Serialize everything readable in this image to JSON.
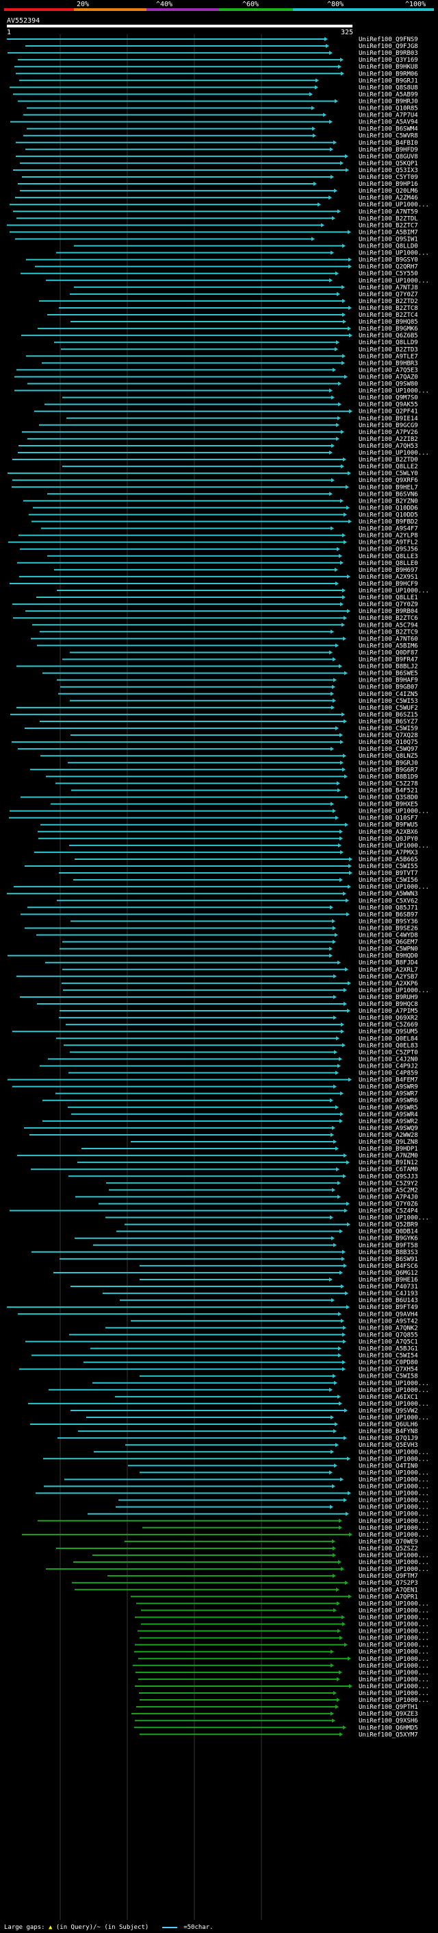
{
  "scale": {
    "labels": [
      "20%",
      "^40%",
      "^60%",
      "^80%",
      "^100%"
    ],
    "colors": [
      "#e8151b",
      "#ee7d12",
      "#9b2fb4",
      "#16b31c",
      "#22c3cc"
    ]
  },
  "query": {
    "id": "AV552394",
    "start": "1",
    "end": "325"
  },
  "hits": [
    "UniRef100_Q9FNS9",
    "UniRef100_Q9FJG8",
    "UniRef100_B9RB03",
    "UniRef100_Q3Y169",
    "UniRef100_B9HKU8",
    "UniRef100_B9RM06",
    "UniRef100_B9GRJ1",
    "UniRef100_Q8S8U8",
    "UniRef100_A5AB99",
    "UniRef100_B9HRJ0",
    "UniRef100_Q10R85",
    "UniRef100_A7P7U4",
    "UniRef100_A5AV94",
    "UniRef100_B6SWM4",
    "UniRef100_C5WVR8",
    "UniRef100_B4FBI0",
    "UniRef100_B9HFD9",
    "UniRef100_Q8GUV8",
    "UniRef100_Q5KQP1",
    "UniRef100_Q53IX3",
    "UniRef100_C5YT09",
    "UniRef100_B9HP16",
    "UniRef100_Q20LM6",
    "UniRef100_A2ZM46",
    "UniRef100_UP1000...",
    "UniRef100_A7NT59",
    "UniRef100_B2ZTDL",
    "UniRef100_B2ZTC7",
    "UniRef100_A5BIM7",
    "UniRef100_Q9SIW1",
    "UniRef100_Q8LLD0",
    "UniRef100_UP1000...",
    "UniRef100_B9GSY0",
    "UniRef100_Q2QRH7",
    "UniRef100_C5Y550",
    "UniRef100_UP1000...",
    "UniRef100_A7NTJ8",
    "UniRef100_Q7Y0Z7",
    "UniRef100_B2ZTD2",
    "UniRef100_B2ZTC8",
    "UniRef100_B2ZTC4",
    "UniRef100_B9HQ85",
    "UniRef100_B9GMK6",
    "UniRef100_Q6Z6B5",
    "UniRef100_Q8LLD9",
    "UniRef100_B2ZTD3",
    "UniRef100_A9TLE7",
    "UniRef100_B9HBR3",
    "UniRef100_A7Q5E3",
    "UniRef100_A7QAZ0",
    "UniRef100_Q9SW80",
    "UniRef100_UP1000...",
    "UniRef100_Q9M7S0",
    "UniRef100_Q9AK55",
    "UniRef100_Q2PF41",
    "UniRef100_B9IE14",
    "UniRef100_B9GCG9",
    "UniRef100_A7PV26",
    "UniRef100_A2ZIB2",
    "UniRef100_A7QH53",
    "UniRef100_UP1000...",
    "UniRef100_B2ZTD0",
    "UniRef100_Q8LLE2",
    "UniRef100_C5WLY0",
    "UniRef100_Q9XRF6",
    "UniRef100_B9HEL7",
    "UniRef100_B6SVN6",
    "UniRef100_B2YZN0",
    "UniRef100_Q10DD6",
    "UniRef100_Q10DD5",
    "UniRef100_B9FBD2",
    "UniRef100_A9S4F7",
    "UniRef100_A2YLP8",
    "UniRef100_A9TFL2",
    "UniRef100_Q9SJ56",
    "UniRef100_Q8LLE3",
    "UniRef100_Q8LLE0",
    "UniRef100_B9H697",
    "UniRef100_A2X9S1",
    "UniRef100_B9HCF9",
    "UniRef100_UP1000...",
    "UniRef100_Q8LLE1",
    "UniRef100_Q7Y0Z9",
    "UniRef100_B9RB04",
    "UniRef100_B2ZTC6",
    "UniRef100_A5C794",
    "UniRef100_B2ZTC9",
    "UniRef100_A7NT60",
    "UniRef100_A5BIM6",
    "UniRef100_Q0DF87",
    "UniRef100_B9FR47",
    "UniRef100_B8BLJ2",
    "UniRef100_B6SWE5",
    "UniRef100_B9HAF9",
    "UniRef100_B9GB07",
    "UniRef100_C4IZN5",
    "UniRef100_C5WI53",
    "UniRef100_C5WUF2",
    "UniRef100_B6SZ15",
    "UniRef100_B6SYZ7",
    "UniRef100_C5WI59",
    "UniRef100_Q7XQ28",
    "UniRef100_Q10Q75",
    "UniRef100_C5WQ97",
    "UniRef100_Q8LNZ5",
    "UniRef100_B9GRJ0",
    "UniRef100_B9G6R7",
    "UniRef100_B8B1D9",
    "UniRef100_C5Z278",
    "UniRef100_B4F521",
    "UniRef100_Q3S8D0",
    "UniRef100_B9HXE5",
    "UniRef100_UP1000...",
    "UniRef100_Q10SF7",
    "UniRef100_B9FWU5",
    "UniRef100_A2XBX6",
    "UniRef100_Q0JPY0",
    "UniRef100_UP1000...",
    "UniRef100_A7PMX3",
    "UniRef100_A5B665",
    "UniRef100_C5WI55",
    "UniRef100_B9TVT7",
    "UniRef100_C5WI56",
    "UniRef100_UP1000...",
    "UniRef100_A5WWN3",
    "UniRef100_C5XV62",
    "UniRef100_Q85J71",
    "UniRef100_B6SB97",
    "UniRef100_B9SY36",
    "UniRef100_B9SE26",
    "UniRef100_C4WYD8",
    "UniRef100_Q6GEM7",
    "UniRef100_C5WPN0",
    "UniRef100_B9HQD0",
    "UniRef100_B8FJD4",
    "UniRef100_A2XRL7",
    "UniRef100_A2YSB7",
    "UniRef100_A2XKP6",
    "UniRef100_UP1000...",
    "UniRef100_B9RUH9",
    "UniRef100_B9HQC8",
    "UniRef100_A7PIM5",
    "UniRef100_Q69XR2",
    "UniRef100_C5Z669",
    "UniRef100_Q9SUM5",
    "UniRef100_Q0EL84",
    "UniRef100_Q0EL83",
    "UniRef100_C5ZPT0",
    "UniRef100_C4J2N0",
    "UniRef100_C4P9J2",
    "UniRef100_C4P859",
    "UniRef100_B4FEM7",
    "UniRef100_A9SWR9",
    "UniRef100_A9SWR7",
    "UniRef100_A9SWR6",
    "UniRef100_A9SWR5",
    "UniRef100_A9SWR4",
    "UniRef100_A9SWR2",
    "UniRef100_A9SWQ9",
    "UniRef100_A2WW28",
    "UniRef100_Q9LZN8",
    "UniRef100_B9HDP1",
    "UniRef100_A7NZM0",
    "UniRef100_B9IN12",
    "UniRef100_C6TAM0",
    "UniRef100_Q9SJJ3",
    "UniRef100_C5Z9Y2",
    "UniRef100_A5C2M2",
    "UniRef100_A7P4J0",
    "UniRef100_Q7Y0Z6",
    "UniRef100_C5Z4P4",
    "UniRef100_UP1000...",
    "UniRef100_Q52BR9",
    "UniRef100_Q0DB14",
    "UniRef100_B9GYK6",
    "UniRef100_B9FT58",
    "UniRef100_B8B3S3",
    "UniRef100_B6SW91",
    "UniRef100_B4FSC6",
    "UniRef100_Q6MG12",
    "UniRef100_B9HE16",
    "UniRef100_P40731",
    "UniRef100_C4J193",
    "UniRef100_B6U143",
    "UniRef100_B9FT49",
    "UniRef100_Q9AVH4",
    "UniRef100_A9ST42",
    "UniRef100_A7QNK2",
    "UniRef100_Q7Q855",
    "UniRef100_A7Q5C1",
    "UniRef100_A5BJG1",
    "UniRef100_C5WI54",
    "UniRef100_C0PD80",
    "UniRef100_Q7XH54",
    "UniRef100_C5WI58",
    "UniRef100_UP1000...",
    "UniRef100_UP1000...",
    "UniRef100_A6IXC1",
    "UniRef100_UP1000...",
    "UniRef100_Q9SVW2",
    "UniRef100_UP1000...",
    "UniRef100_Q6ULH6",
    "UniRef100_B4FYN8",
    "UniRef100_Q7Q1J9",
    "UniRef100_Q5EVH3",
    "UniRef100_UP1000...",
    "UniRef100_UP1000...",
    "UniRef100_Q4TIN0",
    "UniRef100_UP1000...",
    "UniRef100_UP1000...",
    "UniRef100_UP1000...",
    "UniRef100_UP1000...",
    "UniRef100_UP1000...",
    "UniRef100_UP1000...",
    "UniRef100_UP1000...",
    "UniRef100_UP1000...",
    "UniRef100_UP1000...",
    "UniRef100_UP1000...",
    "UniRef100_Q70WE9",
    "UniRef100_Q5ZSZ2",
    "UniRef100_UP1000...",
    "UniRef100_UP1000...",
    "UniRef100_UP1000...",
    "UniRef100_Q9FTM7",
    "UniRef100_Q7S2P3",
    "UniRef100_A7QEN1",
    "UniRef100_A7QPR1",
    "UniRef100_UP1000...",
    "UniRef100_UP1000...",
    "UniRef100_UP1000...",
    "UniRef100_UP1000...",
    "UniRef100_UP1000...",
    "UniRef100_UP1000...",
    "UniRef100_UP1000...",
    "UniRef100_UP1000...",
    "UniRef100_UP1000...",
    "UniRef100_UP1000...",
    "UniRef100_UP1000...",
    "UniRef100_UP1000...",
    "UniRef100_UP1000...",
    "UniRef100_UP1000...",
    "UniRef100_UP1000...",
    "UniRef100_Q9PTH1",
    "UniRef100_Q9XZE3",
    "UniRef100_Q9XSH6",
    "UniRef100_Q6HMD5",
    "UniRef100_Q5XYM7"
  ],
  "footer": {
    "gaps_label": "Large gaps:",
    "in_query": "(in Query)/~ (in Subject)",
    "legend": "=50char."
  }
}
